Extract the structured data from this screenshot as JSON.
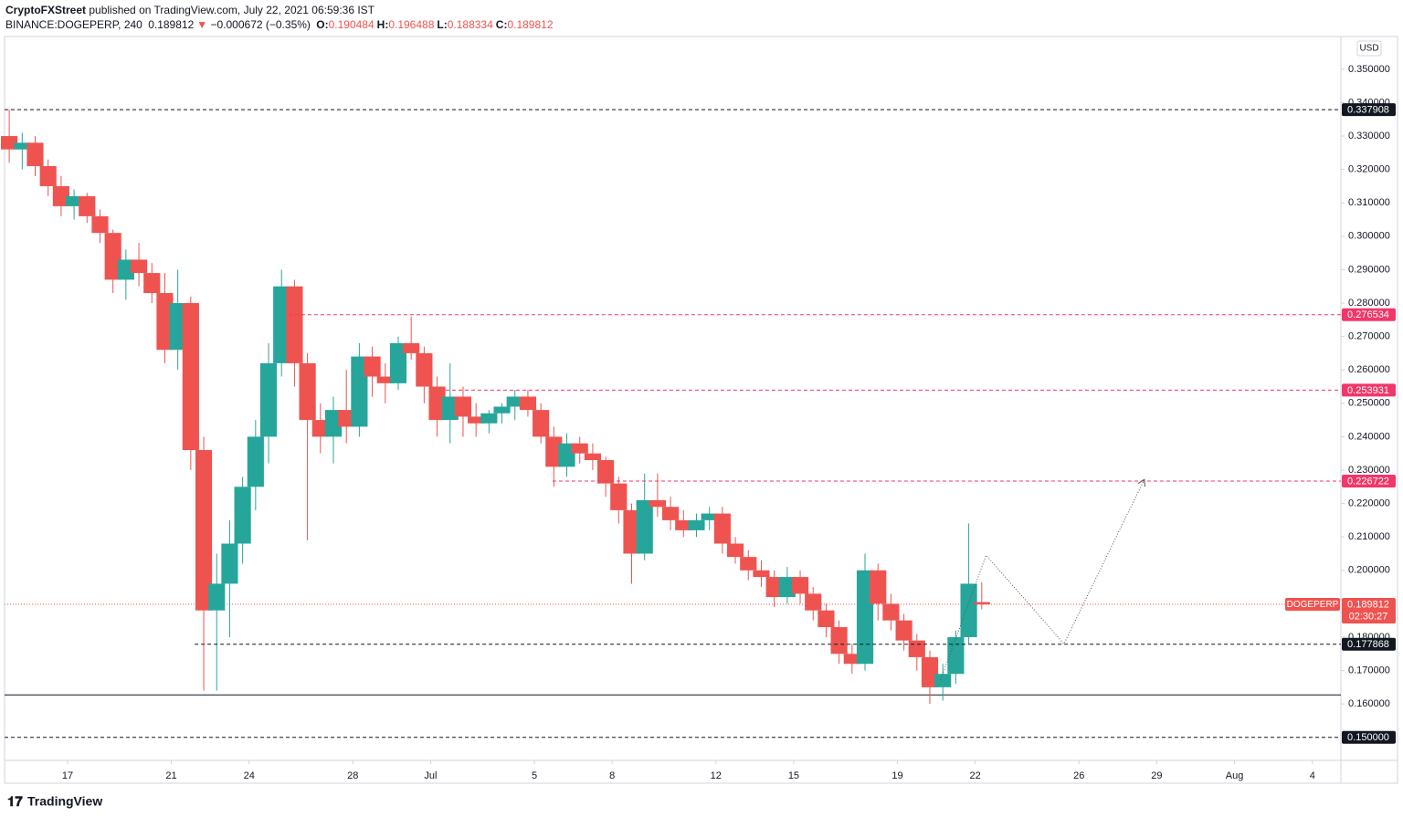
{
  "header": {
    "author": "CryptoFXStreet",
    "published": "published on TradingView.com, July 22, 2021 06:59:36 IST"
  },
  "quote": {
    "symbol": "BINANCE:DOGEPERP, 240",
    "price": "0.189812",
    "arrow": "▼",
    "change": "−0.000672 (−0.35%)",
    "fields": [
      {
        "label": "O:",
        "value": "0.190484"
      },
      {
        "label": "H:",
        "value": "0.196488"
      },
      {
        "label": "L:",
        "value": "0.188334"
      },
      {
        "label": "C:",
        "value": "0.189812"
      }
    ]
  },
  "footer": {
    "brand": "TradingView"
  },
  "chart_data": {
    "type": "candlestick",
    "currency": "USD",
    "up_color": "#26a69a",
    "down_color": "#ef5350",
    "grid": false,
    "xlim": [
      14.57,
      66.1
    ],
    "ylim": [
      0.1431,
      0.3598
    ],
    "xticks": [
      17,
      21,
      24,
      28,
      {
        "value": 31,
        "label": "Jul"
      },
      {
        "value": 35,
        "label": "5"
      },
      {
        "value": 38,
        "label": "8"
      },
      {
        "value": 42,
        "label": "12"
      },
      {
        "value": 45,
        "label": "15"
      },
      {
        "value": 49,
        "label": "19"
      },
      {
        "value": 52,
        "label": "22"
      },
      {
        "value": 56,
        "label": "26"
      },
      {
        "value": 59,
        "label": "29"
      },
      {
        "value": 62,
        "label": "Aug"
      },
      {
        "value": 65,
        "label": "4"
      }
    ],
    "yticks": [
      {
        "value": 0.16,
        "label": "0.160000"
      },
      {
        "value": 0.17,
        "label": "0.170000"
      },
      {
        "value": 0.18,
        "label": "0.180000"
      },
      {
        "value": 0.19,
        "label": "0.190000"
      },
      {
        "value": 0.2,
        "label": "0.200000"
      },
      {
        "value": 0.21,
        "label": "0.210000"
      },
      {
        "value": 0.22,
        "label": "0.220000"
      },
      {
        "value": 0.23,
        "label": "0.230000"
      },
      {
        "value": 0.24,
        "label": "0.240000"
      },
      {
        "value": 0.25,
        "label": "0.250000"
      },
      {
        "value": 0.26,
        "label": "0.260000"
      },
      {
        "value": 0.27,
        "label": "0.270000"
      },
      {
        "value": 0.28,
        "label": "0.280000"
      },
      {
        "value": 0.29,
        "label": "0.290000"
      },
      {
        "value": 0.3,
        "label": "0.300000"
      },
      {
        "value": 0.31,
        "label": "0.310000"
      },
      {
        "value": 0.32,
        "label": "0.320000"
      },
      {
        "value": 0.33,
        "label": "0.330000"
      },
      {
        "value": 0.34,
        "label": "0.340000"
      },
      {
        "value": 0.35,
        "label": "0.350000"
      }
    ],
    "x": [
      14.75,
      15.25,
      15.75,
      16.25,
      16.75,
      17.25,
      17.75,
      18.25,
      18.75,
      19.25,
      19.75,
      20.25,
      20.75,
      21.25,
      21.75,
      22.25,
      22.75,
      23.25,
      23.75,
      24.25,
      24.75,
      25.25,
      25.75,
      26.25,
      26.75,
      27.25,
      27.75,
      28.25,
      28.75,
      29.25,
      29.75,
      30.25,
      30.75,
      31.25,
      31.75,
      32.25,
      32.75,
      33.25,
      33.75,
      34.25,
      34.75,
      35.25,
      35.75,
      36.25,
      36.75,
      37.25,
      37.75,
      38.25,
      38.75,
      39.25,
      39.75,
      40.25,
      40.75,
      41.25,
      41.75,
      42.25,
      42.75,
      43.25,
      43.75,
      44.25,
      44.75,
      45.25,
      45.75,
      46.25,
      46.75,
      47.25,
      47.75,
      48.25,
      48.75,
      49.25,
      49.75,
      50.25,
      50.75,
      51.25,
      51.75,
      52.25
    ],
    "open": [
      0.33,
      0.326,
      0.328,
      0.321,
      0.315,
      0.309,
      0.312,
      0.306,
      0.301,
      0.287,
      0.293,
      0.289,
      0.283,
      0.266,
      0.28,
      0.236,
      0.188,
      0.196,
      0.208,
      0.225,
      0.24,
      0.262,
      0.285,
      0.262,
      0.245,
      0.24,
      0.248,
      0.243,
      0.264,
      0.258,
      0.256,
      0.268,
      0.265,
      0.255,
      0.245,
      0.252,
      0.246,
      0.244,
      0.247,
      0.249,
      0.252,
      0.248,
      0.24,
      0.231,
      0.238,
      0.235,
      0.233,
      0.226,
      0.218,
      0.205,
      0.221,
      0.219,
      0.215,
      0.212,
      0.215,
      0.217,
      0.208,
      0.204,
      0.2,
      0.198,
      0.192,
      0.198,
      0.193,
      0.188,
      0.183,
      0.175,
      0.172,
      0.2,
      0.19,
      0.185,
      0.179,
      0.174,
      0.165,
      0.169,
      0.18,
      0.190484
    ],
    "high": [
      0.338,
      0.331,
      0.33,
      0.323,
      0.318,
      0.314,
      0.313,
      0.308,
      0.302,
      0.296,
      0.298,
      0.292,
      0.289,
      0.29,
      0.282,
      0.24,
      0.205,
      0.215,
      0.228,
      0.245,
      0.268,
      0.29,
      0.287,
      0.265,
      0.25,
      0.252,
      0.26,
      0.268,
      0.267,
      0.262,
      0.27,
      0.276,
      0.267,
      0.258,
      0.262,
      0.255,
      0.25,
      0.248,
      0.25,
      0.254,
      0.254,
      0.25,
      0.243,
      0.241,
      0.24,
      0.238,
      0.234,
      0.228,
      0.22,
      0.229,
      0.229,
      0.222,
      0.218,
      0.217,
      0.219,
      0.219,
      0.21,
      0.206,
      0.203,
      0.2,
      0.201,
      0.2,
      0.195,
      0.19,
      0.185,
      0.178,
      0.205,
      0.202,
      0.193,
      0.187,
      0.181,
      0.176,
      0.172,
      0.182,
      0.214,
      0.196488
    ],
    "low": [
      0.322,
      0.32,
      0.318,
      0.312,
      0.306,
      0.305,
      0.304,
      0.298,
      0.283,
      0.281,
      0.285,
      0.28,
      0.262,
      0.26,
      0.23,
      0.164,
      0.164,
      0.18,
      0.202,
      0.218,
      0.232,
      0.258,
      0.255,
      0.209,
      0.235,
      0.232,
      0.238,
      0.24,
      0.252,
      0.25,
      0.254,
      0.263,
      0.25,
      0.24,
      0.238,
      0.24,
      0.24,
      0.241,
      0.244,
      0.245,
      0.246,
      0.238,
      0.225,
      0.228,
      0.232,
      0.23,
      0.222,
      0.214,
      0.196,
      0.203,
      0.216,
      0.212,
      0.21,
      0.21,
      0.212,
      0.205,
      0.202,
      0.197,
      0.195,
      0.189,
      0.19,
      0.19,
      0.185,
      0.18,
      0.172,
      0.169,
      0.17,
      0.185,
      0.182,
      0.176,
      0.17,
      0.16,
      0.161,
      0.166,
      0.178,
      0.188334
    ],
    "close": [
      0.326,
      0.328,
      0.321,
      0.315,
      0.309,
      0.312,
      0.306,
      0.301,
      0.287,
      0.293,
      0.289,
      0.283,
      0.266,
      0.28,
      0.236,
      0.188,
      0.196,
      0.208,
      0.225,
      0.24,
      0.262,
      0.285,
      0.262,
      0.245,
      0.24,
      0.248,
      0.243,
      0.264,
      0.258,
      0.256,
      0.268,
      0.265,
      0.255,
      0.245,
      0.252,
      0.246,
      0.244,
      0.247,
      0.249,
      0.252,
      0.248,
      0.24,
      0.231,
      0.238,
      0.235,
      0.233,
      0.226,
      0.218,
      0.205,
      0.221,
      0.219,
      0.215,
      0.212,
      0.215,
      0.217,
      0.208,
      0.204,
      0.2,
      0.198,
      0.192,
      0.198,
      0.193,
      0.188,
      0.183,
      0.175,
      0.172,
      0.2,
      0.19,
      0.185,
      0.179,
      0.174,
      0.165,
      0.169,
      0.18,
      0.196,
      0.189812
    ],
    "levels": [
      {
        "value": 0.337908,
        "label": "0.337908",
        "color": "#131722",
        "start": 14.57
      },
      {
        "value": 0.276534,
        "label": "0.276534",
        "color": "#f23668",
        "start": 25.52
      },
      {
        "value": 0.253931,
        "label": "0.253931",
        "color": "#f23668",
        "start": 31.58
      },
      {
        "value": 0.226722,
        "label": "0.226722",
        "color": "#f23668",
        "start": 35.7
      },
      {
        "value": 0.177868,
        "label": "0.177868",
        "color": "#131722",
        "start": 21.9
      },
      {
        "value": 0.15,
        "label": "0.150000",
        "color": "#131722",
        "start": 14.57
      }
    ],
    "support_line": 0.1627,
    "last_price": {
      "value": 0.189812,
      "label": "0.189812",
      "symbol": "DOGEPERP",
      "countdown": "02:30:27",
      "color": "#ef5350"
    },
    "projection": {
      "x": [
        50.66,
        52.42,
        55.42,
        58.52
      ],
      "y": [
        0.1671,
        0.2045,
        0.178,
        0.2272
      ]
    }
  }
}
